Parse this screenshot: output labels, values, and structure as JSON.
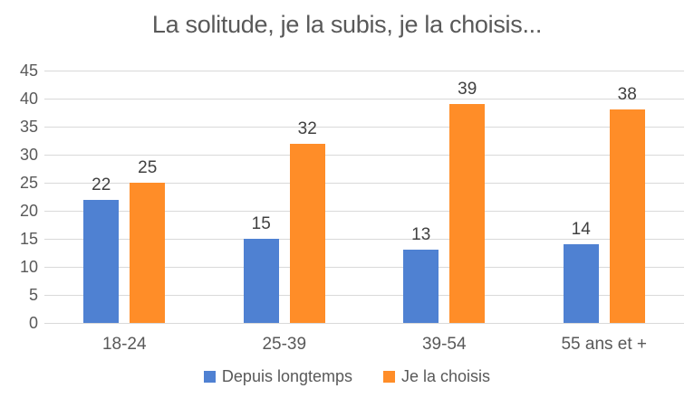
{
  "chart_data": {
    "type": "bar",
    "title": "La solitude, je la subis, je la choisis...",
    "categories": [
      "18-24",
      "25-39",
      "39-54",
      "55 ans et +"
    ],
    "series": [
      {
        "name": "Depuis longtemps",
        "color": "#4F81D2",
        "values": [
          22,
          15,
          13,
          14
        ]
      },
      {
        "name": "Je la choisis",
        "color": "#FF8D28",
        "values": [
          25,
          32,
          39,
          38
        ]
      }
    ],
    "ylim": [
      0,
      45
    ],
    "yticks": [
      0,
      5,
      10,
      15,
      20,
      25,
      30,
      35,
      40,
      45
    ],
    "grid": true,
    "data_labels": true,
    "legend_position": "bottom"
  },
  "colors": {
    "background": "#FFFFFF",
    "title_text": "#595959",
    "axis_text": "#595959",
    "data_label_text": "#404040",
    "gridline": "#D9D9D9"
  }
}
